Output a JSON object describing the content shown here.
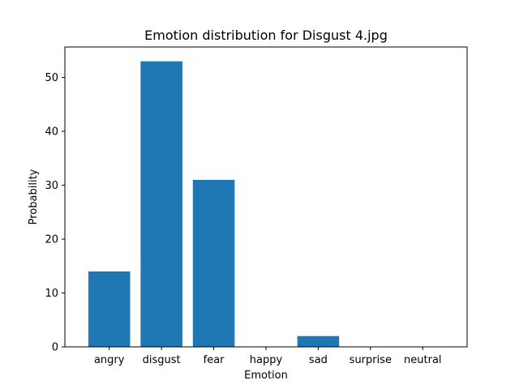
{
  "chart_data": {
    "type": "bar",
    "title": "Emotion distribution for Disgust 4.jpg",
    "xlabel": "Emotion",
    "ylabel": "Probability",
    "categories": [
      "angry",
      "disgust",
      "fear",
      "happy",
      "sad",
      "surprise",
      "neutral"
    ],
    "values": [
      14,
      53,
      31,
      0,
      2,
      0,
      0
    ],
    "ylim": [
      0,
      55.65
    ],
    "yticks": [
      0,
      10,
      20,
      30,
      40,
      50
    ],
    "bar_color": "#1f77b4",
    "grid": false,
    "legend": false
  }
}
